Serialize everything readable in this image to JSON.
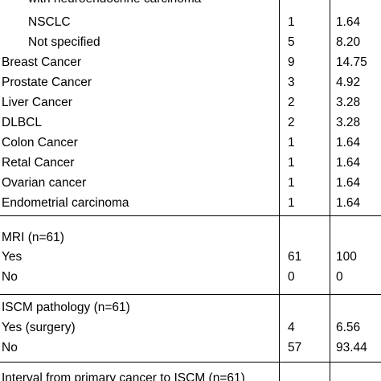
{
  "rows": [
    {
      "label": "with neuroendocrine carcinoma",
      "n": "",
      "pct": ""
    },
    {
      "label": "NSCLC",
      "n": "1",
      "pct": "1.64"
    },
    {
      "label": "Not specified",
      "n": "5",
      "pct": "8.20"
    },
    {
      "label": "Breast Cancer",
      "n": "9",
      "pct": "14.75"
    },
    {
      "label": "Prostate Cancer",
      "n": "3",
      "pct": "4.92"
    },
    {
      "label": "Liver Cancer",
      "n": "2",
      "pct": "3.28"
    },
    {
      "label": "DLBCL",
      "n": "2",
      "pct": "3.28"
    },
    {
      "label": "Colon Cancer",
      "n": "1",
      "pct": "1.64"
    },
    {
      "label": "Retal Cancer",
      "n": "1",
      "pct": "1.64"
    },
    {
      "label": "Ovarian cancer",
      "n": "1",
      "pct": "1.64"
    },
    {
      "label": "Endometrial carcinoma",
      "n": "1",
      "pct": "1.64"
    },
    {
      "label": "MRI (n=61)",
      "n": "",
      "pct": ""
    },
    {
      "label": "Yes",
      "n": "61",
      "pct": "100"
    },
    {
      "label": "No",
      "n": "0",
      "pct": "0"
    },
    {
      "label": "ISCM pathology (n=61)",
      "n": "",
      "pct": ""
    },
    {
      "label": "Yes (surgery)",
      "n": "4",
      "pct": "6.56"
    },
    {
      "label": "No",
      "n": "57",
      "pct": "93.44"
    },
    {
      "label": "Interval from primary cancer to ISCM (n=61)",
      "n": "",
      "pct": ""
    }
  ]
}
